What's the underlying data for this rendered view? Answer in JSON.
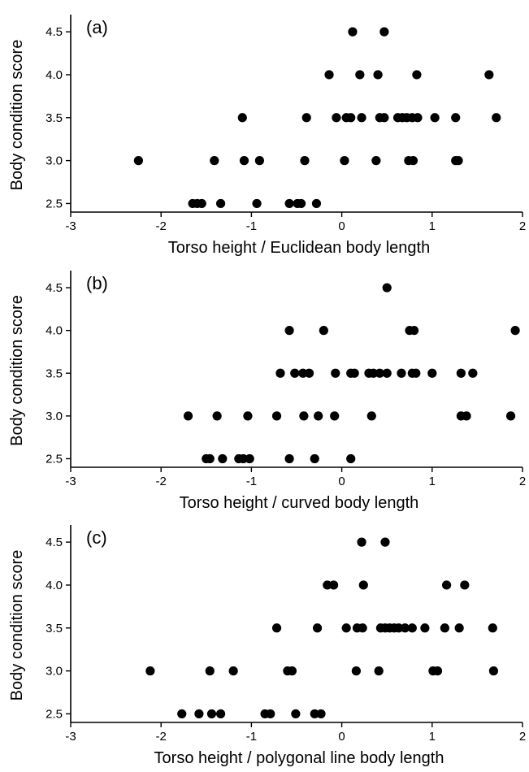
{
  "chart_data": [
    {
      "type": "scatter",
      "title": "(a)",
      "xlabel": "Torso height / Euclidean body length",
      "ylabel": "Body condition score",
      "xlim": [
        -3,
        2
      ],
      "ylim": [
        2.4,
        4.7
      ],
      "xticks": [
        "-3",
        "-2",
        "-1",
        "0",
        "1",
        "2"
      ],
      "yticks": [
        "2.5",
        "3.0",
        "3.5",
        "4.0",
        "4.5"
      ],
      "grid": false,
      "points": [
        {
          "x": 0.12,
          "y": 4.5
        },
        {
          "x": 0.47,
          "y": 4.5
        },
        {
          "x": -0.14,
          "y": 4.0
        },
        {
          "x": 0.2,
          "y": 4.0
        },
        {
          "x": 0.4,
          "y": 4.0
        },
        {
          "x": 0.83,
          "y": 4.0
        },
        {
          "x": 1.63,
          "y": 4.0
        },
        {
          "x": -1.1,
          "y": 3.5
        },
        {
          "x": -0.39,
          "y": 3.5
        },
        {
          "x": -0.06,
          "y": 3.5
        },
        {
          "x": 0.05,
          "y": 3.5
        },
        {
          "x": 0.1,
          "y": 3.5
        },
        {
          "x": 0.22,
          "y": 3.5
        },
        {
          "x": 0.42,
          "y": 3.5
        },
        {
          "x": 0.47,
          "y": 3.5
        },
        {
          "x": 0.62,
          "y": 3.5
        },
        {
          "x": 0.67,
          "y": 3.5
        },
        {
          "x": 0.72,
          "y": 3.5
        },
        {
          "x": 0.78,
          "y": 3.5
        },
        {
          "x": 0.84,
          "y": 3.5
        },
        {
          "x": 1.03,
          "y": 3.5
        },
        {
          "x": 1.26,
          "y": 3.5
        },
        {
          "x": 1.71,
          "y": 3.5
        },
        {
          "x": -2.25,
          "y": 3.0
        },
        {
          "x": -1.41,
          "y": 3.0
        },
        {
          "x": -1.08,
          "y": 3.0
        },
        {
          "x": -0.91,
          "y": 3.0
        },
        {
          "x": -0.41,
          "y": 3.0
        },
        {
          "x": 0.03,
          "y": 3.0
        },
        {
          "x": 0.38,
          "y": 3.0
        },
        {
          "x": 0.74,
          "y": 3.0
        },
        {
          "x": 0.79,
          "y": 3.0
        },
        {
          "x": 1.26,
          "y": 3.0
        },
        {
          "x": 1.29,
          "y": 3.0
        },
        {
          "x": -1.65,
          "y": 2.5
        },
        {
          "x": -1.6,
          "y": 2.5
        },
        {
          "x": -1.55,
          "y": 2.5
        },
        {
          "x": -1.34,
          "y": 2.5
        },
        {
          "x": -0.94,
          "y": 2.5
        },
        {
          "x": -0.58,
          "y": 2.5
        },
        {
          "x": -0.49,
          "y": 2.5
        },
        {
          "x": -0.45,
          "y": 2.5
        },
        {
          "x": -0.28,
          "y": 2.5
        }
      ]
    },
    {
      "type": "scatter",
      "title": "(b)",
      "xlabel": "Torso height / curved body length",
      "ylabel": "Body condition score",
      "xlim": [
        -3,
        2
      ],
      "ylim": [
        2.4,
        4.7
      ],
      "xticks": [
        "-3",
        "-2",
        "-1",
        "0",
        "1",
        "2"
      ],
      "yticks": [
        "2.5",
        "3.0",
        "3.5",
        "4.0",
        "4.5"
      ],
      "grid": false,
      "points": [
        {
          "x": 0.5,
          "y": 4.5
        },
        {
          "x": -0.58,
          "y": 4.0
        },
        {
          "x": -0.2,
          "y": 4.0
        },
        {
          "x": 0.75,
          "y": 4.0
        },
        {
          "x": 0.8,
          "y": 4.0
        },
        {
          "x": 1.92,
          "y": 4.0
        },
        {
          "x": -0.68,
          "y": 3.5
        },
        {
          "x": -0.52,
          "y": 3.5
        },
        {
          "x": -0.43,
          "y": 3.5
        },
        {
          "x": -0.36,
          "y": 3.5
        },
        {
          "x": -0.07,
          "y": 3.5
        },
        {
          "x": 0.1,
          "y": 3.5
        },
        {
          "x": 0.14,
          "y": 3.5
        },
        {
          "x": 0.3,
          "y": 3.5
        },
        {
          "x": 0.35,
          "y": 3.5
        },
        {
          "x": 0.42,
          "y": 3.5
        },
        {
          "x": 0.5,
          "y": 3.5
        },
        {
          "x": 0.66,
          "y": 3.5
        },
        {
          "x": 0.78,
          "y": 3.5
        },
        {
          "x": 0.82,
          "y": 3.5
        },
        {
          "x": 1.0,
          "y": 3.5
        },
        {
          "x": 1.32,
          "y": 3.5
        },
        {
          "x": 1.45,
          "y": 3.5
        },
        {
          "x": -1.7,
          "y": 3.0
        },
        {
          "x": -1.38,
          "y": 3.0
        },
        {
          "x": -1.04,
          "y": 3.0
        },
        {
          "x": -0.72,
          "y": 3.0
        },
        {
          "x": -0.42,
          "y": 3.0
        },
        {
          "x": -0.26,
          "y": 3.0
        },
        {
          "x": -0.08,
          "y": 3.0
        },
        {
          "x": 0.33,
          "y": 3.0
        },
        {
          "x": 1.32,
          "y": 3.0
        },
        {
          "x": 1.38,
          "y": 3.0
        },
        {
          "x": 1.87,
          "y": 3.0
        },
        {
          "x": -1.5,
          "y": 2.5
        },
        {
          "x": -1.46,
          "y": 2.5
        },
        {
          "x": -1.32,
          "y": 2.5
        },
        {
          "x": -1.14,
          "y": 2.5
        },
        {
          "x": -1.09,
          "y": 2.5
        },
        {
          "x": -1.02,
          "y": 2.5
        },
        {
          "x": -0.58,
          "y": 2.5
        },
        {
          "x": -0.3,
          "y": 2.5
        },
        {
          "x": 0.1,
          "y": 2.5
        }
      ]
    },
    {
      "type": "scatter",
      "title": "(c)",
      "xlabel": "Torso height / polygonal line body length",
      "ylabel": "Body condition score",
      "xlim": [
        -3,
        2
      ],
      "ylim": [
        2.4,
        4.7
      ],
      "xticks": [
        "-3",
        "-2",
        "-1",
        "0",
        "1",
        "2"
      ],
      "yticks": [
        "2.5",
        "3.0",
        "3.5",
        "4.0",
        "4.5"
      ],
      "grid": false,
      "points": [
        {
          "x": 0.22,
          "y": 4.5
        },
        {
          "x": 0.48,
          "y": 4.5
        },
        {
          "x": -0.16,
          "y": 4.0
        },
        {
          "x": -0.09,
          "y": 4.0
        },
        {
          "x": 0.24,
          "y": 4.0
        },
        {
          "x": 1.16,
          "y": 4.0
        },
        {
          "x": 1.36,
          "y": 4.0
        },
        {
          "x": -0.72,
          "y": 3.5
        },
        {
          "x": -0.27,
          "y": 3.5
        },
        {
          "x": 0.05,
          "y": 3.5
        },
        {
          "x": 0.17,
          "y": 3.5
        },
        {
          "x": 0.23,
          "y": 3.5
        },
        {
          "x": 0.43,
          "y": 3.5
        },
        {
          "x": 0.48,
          "y": 3.5
        },
        {
          "x": 0.53,
          "y": 3.5
        },
        {
          "x": 0.58,
          "y": 3.5
        },
        {
          "x": 0.63,
          "y": 3.5
        },
        {
          "x": 0.7,
          "y": 3.5
        },
        {
          "x": 0.78,
          "y": 3.5
        },
        {
          "x": 0.92,
          "y": 3.5
        },
        {
          "x": 1.14,
          "y": 3.5
        },
        {
          "x": 1.3,
          "y": 3.5
        },
        {
          "x": 1.67,
          "y": 3.5
        },
        {
          "x": -2.12,
          "y": 3.0
        },
        {
          "x": -1.46,
          "y": 3.0
        },
        {
          "x": -1.2,
          "y": 3.0
        },
        {
          "x": -0.6,
          "y": 3.0
        },
        {
          "x": -0.55,
          "y": 3.0
        },
        {
          "x": 0.16,
          "y": 3.0
        },
        {
          "x": 0.41,
          "y": 3.0
        },
        {
          "x": 1.01,
          "y": 3.0
        },
        {
          "x": 1.06,
          "y": 3.0
        },
        {
          "x": 1.68,
          "y": 3.0
        },
        {
          "x": -1.77,
          "y": 2.5
        },
        {
          "x": -1.58,
          "y": 2.5
        },
        {
          "x": -1.44,
          "y": 2.5
        },
        {
          "x": -1.34,
          "y": 2.5
        },
        {
          "x": -0.85,
          "y": 2.5
        },
        {
          "x": -0.79,
          "y": 2.5
        },
        {
          "x": -0.51,
          "y": 2.5
        },
        {
          "x": -0.3,
          "y": 2.5
        },
        {
          "x": -0.23,
          "y": 2.5
        }
      ]
    }
  ]
}
